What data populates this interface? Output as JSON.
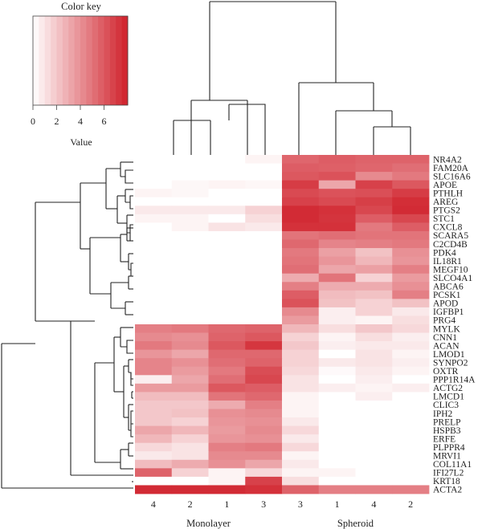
{
  "chart_data": {
    "type": "heatmap",
    "title": "",
    "color_key": {
      "title": "Color key",
      "xlabel": "Value",
      "ticks": [
        0,
        2,
        4,
        6
      ],
      "range": [
        0,
        8
      ],
      "low_color": "#ffffff",
      "high_color": "#d0202a"
    },
    "columns": [
      "4",
      "2",
      "1",
      "3",
      "3",
      "1",
      "4",
      "2"
    ],
    "groups": [
      {
        "name": "Monolayer",
        "columns": [
          0,
          1,
          2,
          3
        ]
      },
      {
        "name": "Spheroid",
        "columns": [
          4,
          5,
          6,
          7
        ]
      }
    ],
    "rows": [
      "NR4A2",
      "FAM20A",
      "SLC16A6",
      "APOE",
      "PTHLH",
      "AREG",
      "PTGS2",
      "STC1",
      "CXCL8",
      "SCARA5",
      "C2CD4B",
      "PDK4",
      "IL18R1",
      "MEGF10",
      "SLCO4A1",
      "ABCA6",
      "PCSK1",
      "APOD",
      "IGFBP1",
      "PRG4",
      "MYLK",
      "CNN1",
      "ACAN",
      "LMOD1",
      "SYNPO2",
      "OXTR",
      "PPP1R14A",
      "ACTG2",
      "LMCD1",
      "CLIC3",
      "IPH2",
      "PRELP",
      "HSPB3",
      "ERFE",
      "PLPPR4",
      "MRVI1",
      "COL11A1",
      "IFI27L2",
      "KRT18",
      "ACTA2"
    ],
    "values": [
      [
        0.0,
        0.0,
        0.0,
        0.4,
        5.5,
        5.8,
        5.6,
        5.6
      ],
      [
        0.0,
        0.0,
        0.0,
        0.0,
        5.8,
        5.7,
        5.5,
        5.2
      ],
      [
        0.0,
        0.0,
        0.0,
        0.0,
        6.0,
        6.2,
        4.2,
        4.8
      ],
      [
        0.0,
        0.3,
        0.4,
        0.3,
        7.0,
        3.2,
        6.8,
        6.0
      ],
      [
        0.4,
        0.3,
        0.0,
        0.0,
        6.5,
        6.2,
        6.3,
        7.0
      ],
      [
        0.0,
        0.0,
        0.0,
        0.0,
        6.8,
        6.5,
        6.9,
        7.5
      ],
      [
        0.8,
        0.8,
        0.8,
        1.6,
        7.6,
        7.4,
        6.6,
        7.6
      ],
      [
        0.4,
        0.4,
        0.0,
        1.2,
        7.6,
        7.3,
        5.8,
        6.6
      ],
      [
        0.0,
        0.4,
        1.0,
        0.8,
        7.4,
        7.4,
        4.8,
        5.8
      ],
      [
        0.0,
        0.0,
        0.0,
        0.0,
        5.0,
        5.2,
        5.0,
        5.0
      ],
      [
        0.0,
        0.0,
        0.0,
        0.0,
        5.4,
        4.4,
        4.6,
        4.8
      ],
      [
        0.0,
        0.0,
        0.0,
        0.0,
        4.8,
        3.4,
        2.2,
        4.0
      ],
      [
        0.0,
        0.0,
        0.0,
        0.0,
        5.0,
        3.8,
        2.6,
        3.8
      ],
      [
        0.0,
        0.0,
        0.0,
        0.0,
        5.2,
        3.2,
        3.4,
        4.6
      ],
      [
        0.0,
        0.0,
        0.0,
        0.0,
        3.0,
        5.0,
        1.6,
        3.6
      ],
      [
        0.0,
        0.0,
        0.0,
        0.0,
        4.6,
        3.0,
        3.0,
        4.0
      ],
      [
        0.0,
        0.0,
        0.0,
        0.0,
        5.8,
        2.4,
        2.2,
        4.6
      ],
      [
        0.0,
        0.0,
        0.0,
        0.0,
        6.2,
        2.2,
        1.6,
        2.2
      ],
      [
        0.0,
        0.0,
        0.0,
        0.0,
        4.2,
        0.6,
        1.6,
        0.8
      ],
      [
        0.0,
        0.0,
        0.0,
        0.0,
        3.6,
        0.6,
        0.4,
        1.2
      ],
      [
        4.6,
        4.8,
        5.4,
        5.6,
        2.6,
        1.2,
        2.0,
        1.4
      ],
      [
        4.2,
        4.0,
        5.6,
        6.0,
        1.6,
        0.4,
        1.2,
        0.6
      ],
      [
        4.8,
        4.2,
        6.0,
        7.2,
        2.0,
        0.6,
        0.8,
        0.8
      ],
      [
        3.8,
        3.2,
        5.4,
        5.4,
        1.6,
        0.0,
        1.0,
        0.4
      ],
      [
        4.4,
        4.0,
        5.2,
        5.6,
        1.6,
        0.8,
        1.0,
        0.6
      ],
      [
        4.4,
        3.6,
        4.8,
        6.4,
        1.4,
        0.2,
        0.8,
        0.4
      ],
      [
        0.6,
        3.2,
        5.2,
        6.6,
        1.0,
        0.0,
        0.6,
        0.0
      ],
      [
        3.6,
        3.6,
        6.0,
        5.8,
        1.0,
        0.6,
        0.4,
        0.6
      ],
      [
        2.4,
        2.4,
        5.0,
        5.4,
        0.4,
        0.0,
        0.6,
        0.0
      ],
      [
        2.0,
        2.0,
        3.0,
        4.6,
        0.4,
        0.0,
        0.0,
        0.0
      ],
      [
        2.0,
        2.2,
        4.0,
        4.2,
        0.4,
        0.0,
        0.0,
        0.0
      ],
      [
        2.0,
        1.6,
        3.8,
        4.0,
        0.8,
        0.0,
        0.0,
        0.0
      ],
      [
        3.2,
        2.6,
        3.6,
        4.2,
        1.4,
        0.0,
        0.0,
        0.0
      ],
      [
        2.6,
        1.6,
        3.8,
        4.0,
        0.8,
        0.0,
        0.0,
        0.0
      ],
      [
        1.4,
        1.0,
        4.6,
        4.8,
        1.4,
        0.0,
        0.0,
        0.0
      ],
      [
        0.8,
        1.0,
        4.2,
        4.2,
        0.4,
        0.0,
        0.0,
        0.0
      ],
      [
        2.4,
        3.0,
        4.0,
        3.2,
        0.8,
        0.0,
        0.0,
        0.0
      ],
      [
        5.6,
        1.6,
        0.4,
        1.4,
        0.4,
        0.4,
        0.0,
        0.0
      ],
      [
        0.0,
        0.0,
        0.4,
        6.8,
        1.2,
        0.0,
        0.0,
        0.0
      ],
      [
        7.6,
        7.6,
        7.6,
        7.4,
        5.6,
        4.6,
        4.6,
        4.6
      ]
    ]
  }
}
